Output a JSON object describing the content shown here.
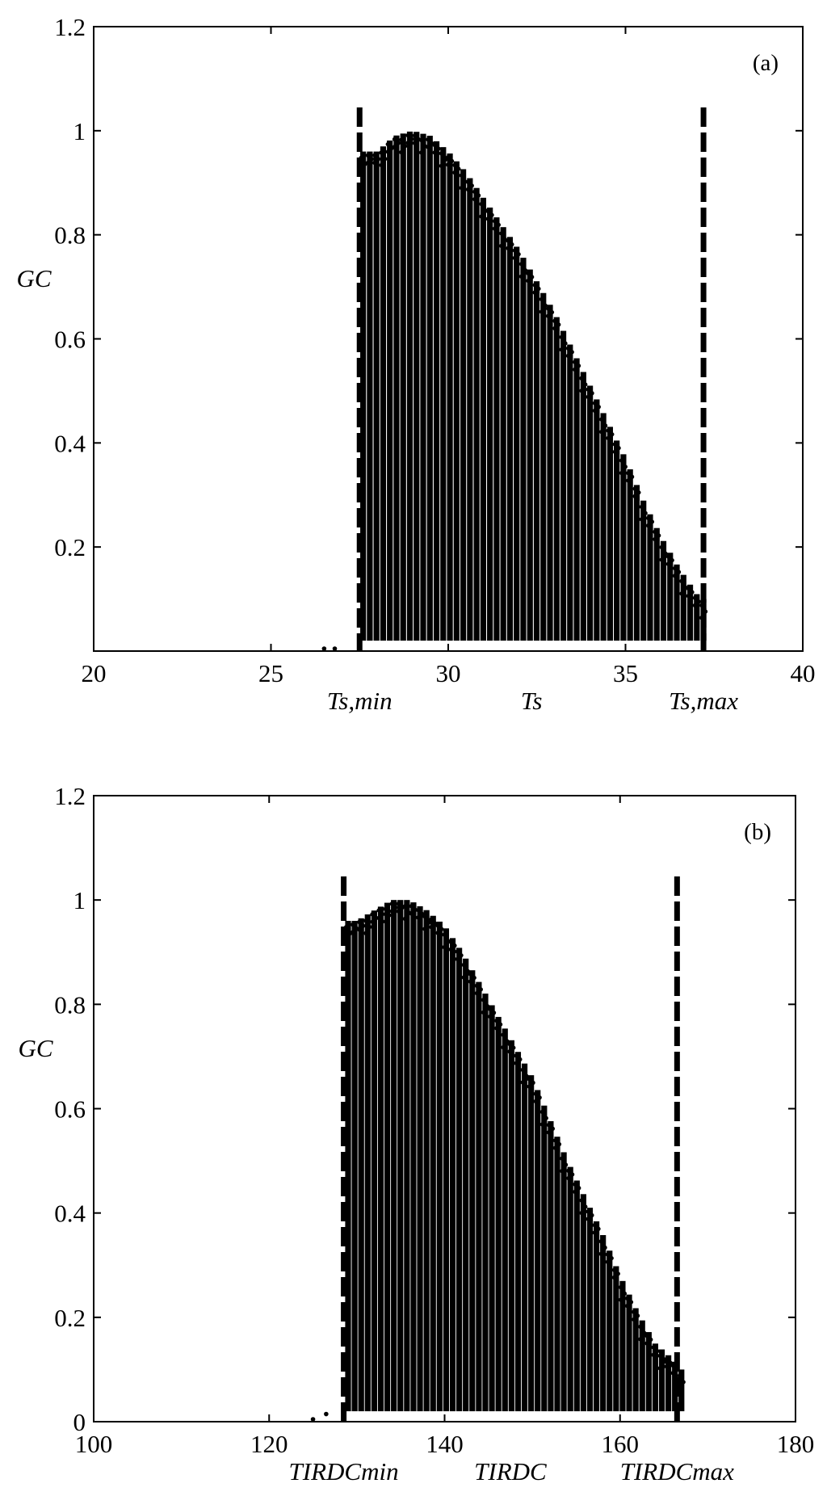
{
  "chart_data": [
    {
      "type": "scatter",
      "panel_label": "(a)",
      "title": "",
      "xlabel": "Ts",
      "ylabel": "GC",
      "xlim": [
        20,
        40
      ],
      "ylim": [
        0,
        1.2
      ],
      "x_ticks": [
        20,
        25,
        30,
        35,
        40
      ],
      "y_ticks": [
        0.2,
        0.4,
        0.6,
        0.8,
        1,
        1.2
      ],
      "x_tick_labels": [
        "20",
        "25",
        "30",
        "35",
        "40"
      ],
      "y_tick_labels": [
        "0.2",
        "0.4",
        "0.6",
        "0.8",
        "1",
        "1.2"
      ],
      "grid": false,
      "marker_color": "#000000",
      "reference_lines": [
        {
          "label": "Ts,min",
          "x": 27.5,
          "style": "dashed"
        },
        {
          "label": "Ts,max",
          "x": 37.2,
          "style": "dashed"
        }
      ],
      "envelope": {
        "x": [
          27.6,
          28.0,
          28.5,
          29.0,
          29.5,
          30.0,
          30.5,
          31.0,
          31.5,
          32.0,
          32.5,
          33.0,
          33.5,
          34.0,
          34.5,
          35.0,
          35.5,
          36.0,
          36.5,
          37.0,
          37.2
        ],
        "upper": [
          0.96,
          0.96,
          0.99,
          1.0,
          0.99,
          0.96,
          0.92,
          0.87,
          0.82,
          0.77,
          0.71,
          0.65,
          0.58,
          0.51,
          0.44,
          0.37,
          0.29,
          0.22,
          0.16,
          0.11,
          0.1
        ],
        "lower": [
          0.02,
          0.02,
          0.02,
          0.02,
          0.02,
          0.02,
          0.02,
          0.02,
          0.02,
          0.02,
          0.02,
          0.02,
          0.02,
          0.02,
          0.02,
          0.02,
          0.02,
          0.02,
          0.02,
          0.02,
          0.02
        ]
      },
      "outliers": [
        {
          "x": 26.5,
          "y": 0.0
        },
        {
          "x": 26.8,
          "y": 0.0
        }
      ]
    },
    {
      "type": "scatter",
      "panel_label": "(b)",
      "title": "",
      "xlabel": "TIRDC",
      "ylabel": "GC",
      "xlim": [
        100,
        180
      ],
      "ylim": [
        0,
        1.2
      ],
      "x_ticks": [
        100,
        120,
        140,
        160,
        180
      ],
      "y_ticks": [
        0,
        0.2,
        0.4,
        0.6,
        0.8,
        1,
        1.2
      ],
      "x_tick_labels": [
        "100",
        "120",
        "140",
        "160",
        "180"
      ],
      "y_tick_labels": [
        "0",
        "0.2",
        "0.4",
        "0.6",
        "0.8",
        "1",
        "1.2"
      ],
      "grid": false,
      "marker_color": "#000000",
      "reference_lines": [
        {
          "label": "TIRDCmin",
          "x": 128.5,
          "style": "dashed"
        },
        {
          "label": "TIRDCmax",
          "x": 166.5,
          "style": "dashed"
        }
      ],
      "envelope": {
        "x": [
          129,
          130,
          132,
          134,
          136,
          138,
          140,
          142,
          144,
          146,
          148,
          150,
          152,
          154,
          156,
          158,
          160,
          162,
          164,
          166,
          167
        ],
        "upper": [
          0.96,
          0.96,
          0.98,
          1.0,
          1.0,
          0.98,
          0.95,
          0.9,
          0.84,
          0.78,
          0.72,
          0.66,
          0.58,
          0.5,
          0.43,
          0.36,
          0.28,
          0.21,
          0.15,
          0.12,
          0.1
        ],
        "lower": [
          0.02,
          0.02,
          0.02,
          0.02,
          0.02,
          0.02,
          0.02,
          0.02,
          0.02,
          0.02,
          0.02,
          0.02,
          0.02,
          0.02,
          0.02,
          0.02,
          0.02,
          0.02,
          0.02,
          0.02,
          0.02
        ]
      },
      "outliers": [
        {
          "x": 125.0,
          "y": 0.0
        },
        {
          "x": 126.5,
          "y": 0.01
        }
      ]
    }
  ]
}
